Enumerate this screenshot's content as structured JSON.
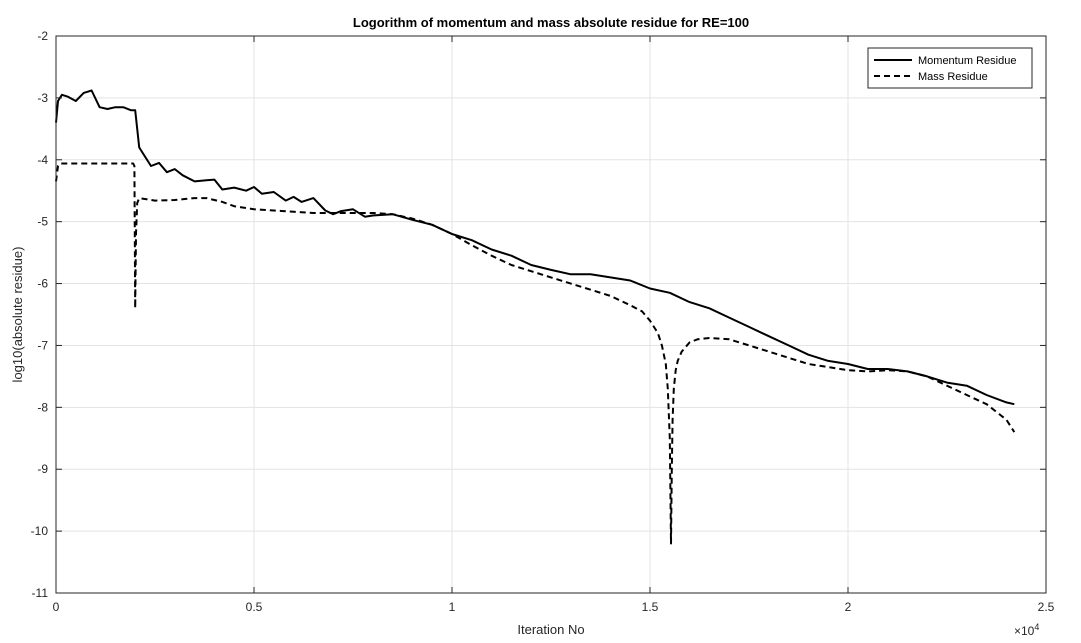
{
  "chart_data": {
    "type": "line",
    "title": "Logorithm of momentum and mass absolute residue for RE=100",
    "xlabel": "Iteration No",
    "ylabel": "log10(absolute residue)",
    "x_exponent_label": "×10",
    "x_exponent_power": "4",
    "xlim": [
      0,
      2.5
    ],
    "ylim": [
      -11,
      -2
    ],
    "xticks": [
      0,
      0.5,
      1,
      1.5,
      2,
      2.5
    ],
    "xtick_labels": [
      "0",
      "0.5",
      "1",
      "1.5",
      "2",
      "2.5"
    ],
    "yticks": [
      -11,
      -10,
      -9,
      -8,
      -7,
      -6,
      -5,
      -4,
      -3,
      -2
    ],
    "ytick_labels": [
      "-11",
      "-10",
      "-9",
      "-8",
      "-7",
      "-6",
      "-5",
      "-4",
      "-3",
      "-2"
    ],
    "grid": true,
    "legend_position": "top-right",
    "series": [
      {
        "name": "Momentum Residue",
        "style": "solid",
        "color": "#000000",
        "x": [
          0,
          0.005,
          0.015,
          0.03,
          0.05,
          0.07,
          0.09,
          0.11,
          0.13,
          0.15,
          0.17,
          0.19,
          0.2,
          0.205,
          0.21,
          0.22,
          0.24,
          0.26,
          0.28,
          0.3,
          0.32,
          0.35,
          0.38,
          0.4,
          0.42,
          0.45,
          0.48,
          0.5,
          0.52,
          0.55,
          0.58,
          0.6,
          0.62,
          0.65,
          0.68,
          0.7,
          0.72,
          0.75,
          0.78,
          0.8,
          0.85,
          0.9,
          0.95,
          1.0,
          1.05,
          1.1,
          1.15,
          1.2,
          1.25,
          1.3,
          1.35,
          1.4,
          1.45,
          1.5,
          1.55,
          1.6,
          1.65,
          1.7,
          1.75,
          1.8,
          1.85,
          1.9,
          1.95,
          2.0,
          2.05,
          2.1,
          2.15,
          2.2,
          2.25,
          2.3,
          2.35,
          2.4,
          2.42
        ],
        "y": [
          -3.4,
          -3.05,
          -2.95,
          -2.98,
          -3.05,
          -2.92,
          -2.88,
          -3.15,
          -3.18,
          -3.15,
          -3.15,
          -3.2,
          -3.2,
          -3.5,
          -3.8,
          -3.9,
          -4.1,
          -4.05,
          -4.2,
          -4.15,
          -4.25,
          -4.35,
          -4.33,
          -4.32,
          -4.48,
          -4.45,
          -4.5,
          -4.44,
          -4.55,
          -4.52,
          -4.66,
          -4.6,
          -4.68,
          -4.62,
          -4.82,
          -4.88,
          -4.83,
          -4.8,
          -4.92,
          -4.9,
          -4.88,
          -4.97,
          -5.05,
          -5.2,
          -5.3,
          -5.45,
          -5.55,
          -5.7,
          -5.78,
          -5.85,
          -5.85,
          -5.9,
          -5.95,
          -6.08,
          -6.15,
          -6.3,
          -6.4,
          -6.55,
          -6.7,
          -6.85,
          -7.0,
          -7.15,
          -7.25,
          -7.3,
          -7.38,
          -7.38,
          -7.42,
          -7.5,
          -7.6,
          -7.65,
          -7.8,
          -7.92,
          -7.95
        ]
      },
      {
        "name": "Mass Residue",
        "style": "dashed",
        "color": "#000000",
        "x": [
          0,
          0.005,
          0.01,
          0.05,
          0.1,
          0.15,
          0.19,
          0.195,
          0.198,
          0.2,
          0.202,
          0.205,
          0.21,
          0.25,
          0.3,
          0.35,
          0.38,
          0.42,
          0.45,
          0.5,
          0.55,
          0.6,
          0.65,
          0.7,
          0.75,
          0.8,
          0.85,
          0.9,
          0.95,
          1.0,
          1.05,
          1.1,
          1.15,
          1.2,
          1.25,
          1.3,
          1.35,
          1.4,
          1.45,
          1.48,
          1.5,
          1.52,
          1.53,
          1.54,
          1.545,
          1.55,
          1.553,
          1.555,
          1.557,
          1.56,
          1.565,
          1.57,
          1.58,
          1.6,
          1.62,
          1.65,
          1.7,
          1.75,
          1.8,
          1.85,
          1.9,
          1.95,
          2.0,
          2.05,
          2.1,
          2.15,
          2.2,
          2.25,
          2.3,
          2.35,
          2.4,
          2.42
        ],
        "y": [
          -4.35,
          -4.1,
          -4.06,
          -4.06,
          -4.06,
          -4.06,
          -4.06,
          -4.06,
          -4.1,
          -6.4,
          -5.2,
          -4.7,
          -4.62,
          -4.66,
          -4.65,
          -4.62,
          -4.62,
          -4.68,
          -4.75,
          -4.8,
          -4.82,
          -4.84,
          -4.86,
          -4.86,
          -4.86,
          -4.86,
          -4.88,
          -4.95,
          -5.05,
          -5.2,
          -5.38,
          -5.55,
          -5.7,
          -5.8,
          -5.9,
          -6.0,
          -6.1,
          -6.2,
          -6.35,
          -6.45,
          -6.6,
          -6.8,
          -7.0,
          -7.3,
          -7.7,
          -8.5,
          -10.2,
          -9.0,
          -8.2,
          -7.7,
          -7.4,
          -7.25,
          -7.1,
          -6.95,
          -6.9,
          -6.88,
          -6.9,
          -7.0,
          -7.1,
          -7.2,
          -7.3,
          -7.35,
          -7.4,
          -7.42,
          -7.4,
          -7.42,
          -7.5,
          -7.65,
          -7.8,
          -7.95,
          -8.2,
          -8.4
        ]
      }
    ]
  }
}
